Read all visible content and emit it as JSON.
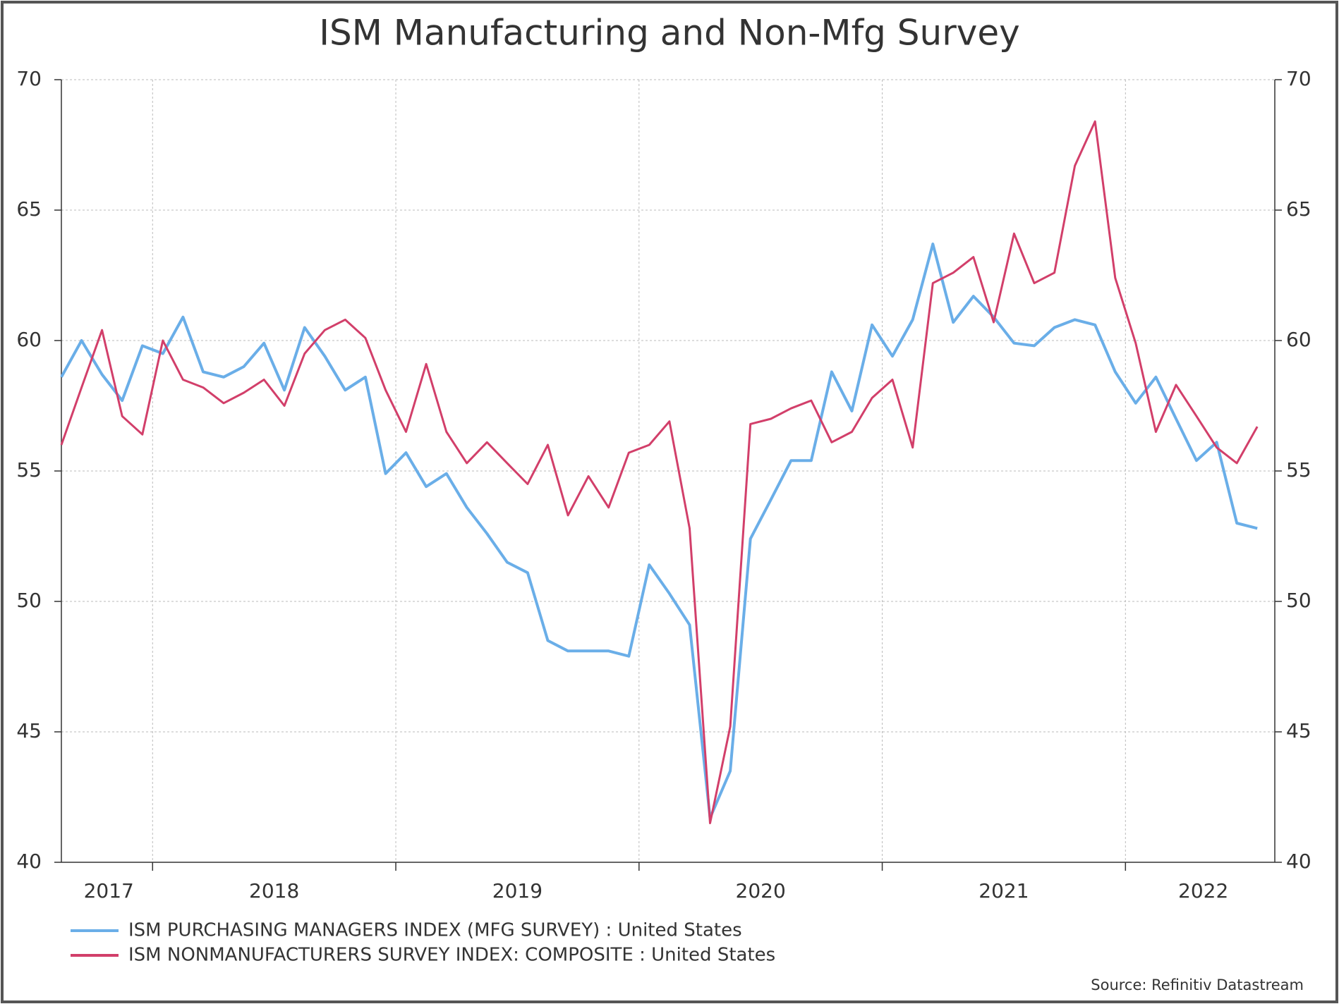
{
  "chart_data": {
    "type": "line",
    "title": "ISM Manufacturing and Non-Mfg Survey",
    "source": "Source: Refinitiv Datastream",
    "x": [
      2017.625,
      2017.708,
      2017.792,
      2017.875,
      2017.958,
      2018.042,
      2018.125,
      2018.208,
      2018.292,
      2018.375,
      2018.458,
      2018.542,
      2018.625,
      2018.708,
      2018.792,
      2018.875,
      2018.958,
      2019.042,
      2019.125,
      2019.208,
      2019.292,
      2019.375,
      2019.458,
      2019.542,
      2019.625,
      2019.708,
      2019.792,
      2019.875,
      2019.958,
      2020.042,
      2020.125,
      2020.208,
      2020.292,
      2020.375,
      2020.458,
      2020.542,
      2020.625,
      2020.708,
      2020.792,
      2020.875,
      2020.958,
      2021.042,
      2021.125,
      2021.208,
      2021.292,
      2021.375,
      2021.458,
      2021.542,
      2021.625,
      2021.708,
      2021.792,
      2021.875,
      2021.958,
      2022.042,
      2022.125,
      2022.208,
      2022.292,
      2022.375,
      2022.458,
      2022.542
    ],
    "series": [
      {
        "name": "ISM PURCHASING MANAGERS INDEX (MFG SURVEY) : United States",
        "color": "#6aaee8",
        "values": [
          58.6,
          60.0,
          58.7,
          57.7,
          59.8,
          59.5,
          60.9,
          58.8,
          58.6,
          59.0,
          59.9,
          58.1,
          60.5,
          59.4,
          58.1,
          58.6,
          54.9,
          55.7,
          54.4,
          54.9,
          53.6,
          52.6,
          51.5,
          51.1,
          48.5,
          48.1,
          48.1,
          48.1,
          47.9,
          51.4,
          50.3,
          49.1,
          41.7,
          43.5,
          52.4,
          53.9,
          55.4,
          55.4,
          58.8,
          57.3,
          60.6,
          59.4,
          60.8,
          63.7,
          60.7,
          61.7,
          60.9,
          59.9,
          59.8,
          60.5,
          60.8,
          60.6,
          58.8,
          57.6,
          58.6,
          57.0,
          55.4,
          56.1,
          53.0,
          52.8
        ]
      },
      {
        "name": "ISM NONMANUFACTURERS SURVEY INDEX: COMPOSITE : United States",
        "color": "#d23f6a",
        "values": [
          56.0,
          58.2,
          60.4,
          57.1,
          56.4,
          60.0,
          58.5,
          58.2,
          57.6,
          58.0,
          58.5,
          57.5,
          59.5,
          60.4,
          60.8,
          60.1,
          58.1,
          56.5,
          59.1,
          56.5,
          55.3,
          56.1,
          55.3,
          54.5,
          56.0,
          53.3,
          54.8,
          53.6,
          55.7,
          56.0,
          56.9,
          52.8,
          41.5,
          45.2,
          56.8,
          57.0,
          57.4,
          57.7,
          56.1,
          56.5,
          57.8,
          58.5,
          55.9,
          62.2,
          62.6,
          63.2,
          60.7,
          64.1,
          62.2,
          62.6,
          66.7,
          68.4,
          62.4,
          59.9,
          56.5,
          58.3,
          57.1,
          55.9,
          55.3,
          56.7
        ]
      }
    ],
    "xlim": [
      2017.625,
      2022.614
    ],
    "xticks": [
      {
        "value": 2017.82,
        "label": "2017"
      },
      {
        "value": 2018.5,
        "label": "2018"
      },
      {
        "value": 2019.5,
        "label": "2019"
      },
      {
        "value": 2020.5,
        "label": "2020"
      },
      {
        "value": 2021.5,
        "label": "2021"
      },
      {
        "value": 2022.32,
        "label": "2022"
      }
    ],
    "year_boundaries": [
      2018,
      2019,
      2020,
      2021,
      2022
    ],
    "ylim": [
      40,
      70
    ],
    "yticks": [
      40,
      45,
      50,
      55,
      60,
      65,
      70
    ],
    "grid": true
  }
}
